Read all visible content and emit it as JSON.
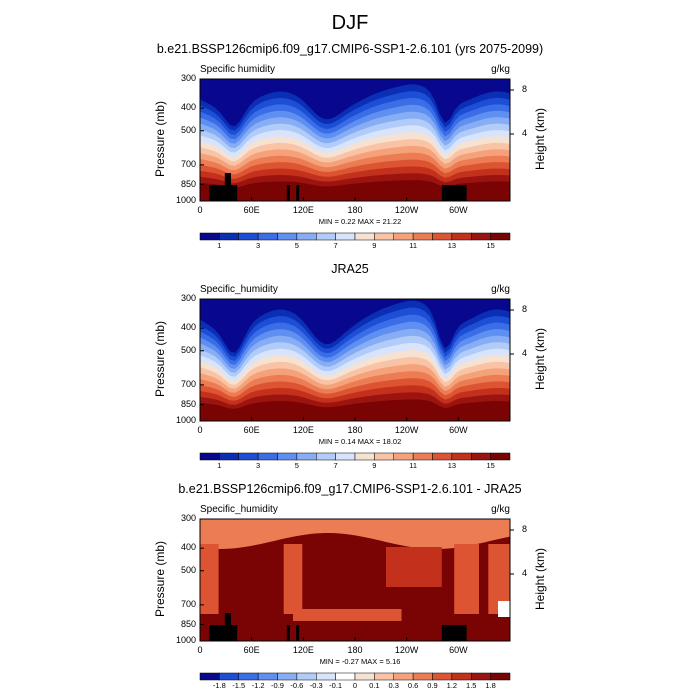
{
  "main_title": "DJF",
  "colors": {
    "positive_scale": [
      "#08088f",
      "#0a2fb5",
      "#1c4fd6",
      "#3b6ee6",
      "#5f8ff0",
      "#87aef5",
      "#b2ccfa",
      "#d8e4fb",
      "#f7e2d2",
      "#f9c4a5",
      "#f5a27a",
      "#ec7c53",
      "#dc5432",
      "#c3301c",
      "#9c1410",
      "#7a0403"
    ],
    "diff_scale": [
      "#08088f",
      "#1c4fd6",
      "#3b6ee6",
      "#5f8ff0",
      "#87aef5",
      "#b2ccfa",
      "#d8e4fb",
      "#ffffff",
      "#f7e2d2",
      "#f9c4a5",
      "#f5a27a",
      "#ec7c53",
      "#dc5432",
      "#c3301c",
      "#9c1410",
      "#7a0403"
    ],
    "land_mask": "#000000"
  },
  "chart_data": [
    {
      "type": "heatmap",
      "title": "b.e21.BSSP126cmip6.f09_g17.CMIP6-SSP1-2.6.101 (yrs 2075-2099)",
      "variable_label": "Specific humidity",
      "units": "g/kg",
      "ylabel": "Pressure (mb)",
      "ylabel_right": "Height (km)",
      "x_ticks": [
        "0",
        "60E",
        "120E",
        "180",
        "120W",
        "60W"
      ],
      "y_ticks": [
        "300",
        "400",
        "500",
        "700",
        "850",
        "1000"
      ],
      "y_right_ticks": [
        "8",
        "4"
      ],
      "min_label": "MIN =   0.22  MAX =  21.22",
      "min": 0.22,
      "max": 21.22,
      "colorbar_labels": [
        "1",
        "3",
        "5",
        "7",
        "9",
        "11",
        "13",
        "15"
      ]
    },
    {
      "type": "heatmap",
      "title": "JRA25",
      "variable_label": "Specific_humidity",
      "units": "g/kg",
      "ylabel": "Pressure (mb)",
      "ylabel_right": "Height (km)",
      "x_ticks": [
        "0",
        "60E",
        "120E",
        "180",
        "120W",
        "60W"
      ],
      "y_ticks": [
        "300",
        "400",
        "500",
        "700",
        "850",
        "1000"
      ],
      "y_right_ticks": [
        "8",
        "4"
      ],
      "min_label": "MIN =   0.14  MAX =  18.02",
      "min": 0.14,
      "max": 18.02,
      "colorbar_labels": [
        "1",
        "3",
        "5",
        "7",
        "9",
        "11",
        "13",
        "15"
      ]
    },
    {
      "type": "heatmap",
      "title": "b.e21.BSSP126cmip6.f09_g17.CMIP6-SSP1-2.6.101 - JRA25",
      "variable_label": "Specific_humidity",
      "units": "g/kg",
      "ylabel": "Pressure (mb)",
      "ylabel_right": "Height (km)",
      "x_ticks": [
        "0",
        "60E",
        "120E",
        "180",
        "120W",
        "60W"
      ],
      "y_ticks": [
        "300",
        "400",
        "500",
        "700",
        "850",
        "1000"
      ],
      "y_right_ticks": [
        "8",
        "4"
      ],
      "min_label": "MIN =  -0.27  MAX =   5.16",
      "min": -0.27,
      "max": 5.16,
      "colorbar_labels": [
        "-1.8",
        "-1.5",
        "-1.2",
        "-0.9",
        "-0.6",
        "-0.3",
        "-0.1",
        "0",
        "0.1",
        "0.3",
        "0.6",
        "0.9",
        "1.2",
        "1.5",
        "1.8"
      ]
    }
  ]
}
